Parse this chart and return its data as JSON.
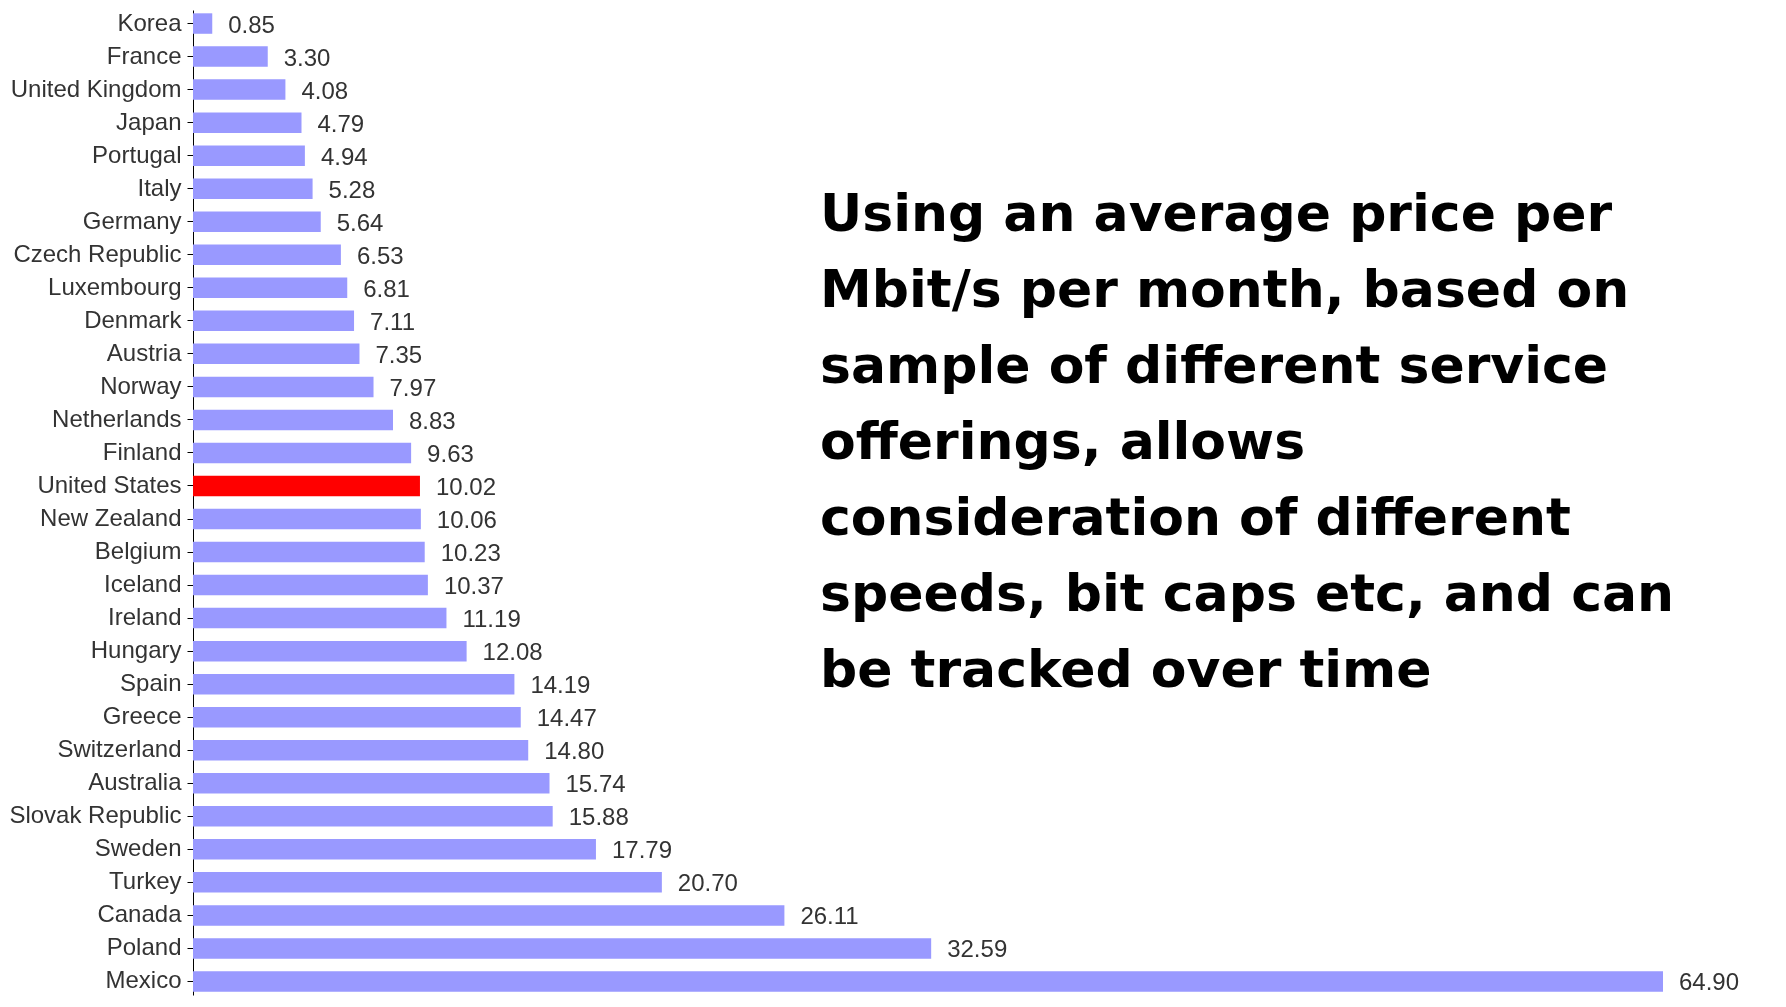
{
  "chart_data": {
    "type": "bar",
    "orientation": "horizontal",
    "data_labels": true,
    "categories": [
      "Korea",
      "France",
      "United Kingdom",
      "Japan",
      "Portugal",
      "Italy",
      "Germany",
      "Czech Republic",
      "Luxembourg",
      "Denmark",
      "Austria",
      "Norway",
      "Netherlands",
      "Finland",
      "United States",
      "New Zealand",
      "Belgium",
      "Iceland",
      "Ireland",
      "Hungary",
      "Spain",
      "Greece",
      "Switzerland",
      "Australia",
      "Slovak Republic",
      "Sweden",
      "Turkey",
      "Canada",
      "Poland",
      "Mexico"
    ],
    "values": [
      0.85,
      3.3,
      4.08,
      4.79,
      4.94,
      5.28,
      5.64,
      6.53,
      6.81,
      7.11,
      7.35,
      7.97,
      8.83,
      9.63,
      10.02,
      10.06,
      10.23,
      10.37,
      11.19,
      12.08,
      14.19,
      14.47,
      14.8,
      15.74,
      15.88,
      17.79,
      20.7,
      26.11,
      32.59,
      64.9
    ],
    "value_labels": [
      "0.85",
      "3.30",
      "4.08",
      "4.79",
      "4.94",
      "5.28",
      "5.64",
      "6.53",
      "6.81",
      "7.11",
      "7.35",
      "7.97",
      "8.83",
      "9.63",
      "10.02",
      "10.06",
      "10.23",
      "10.37",
      "11.19",
      "12.08",
      "14.19",
      "14.47",
      "14.80",
      "15.74",
      "15.88",
      "17.79",
      "20.70",
      "26.11",
      "32.59",
      "64.90"
    ],
    "colors": [
      "#9999ff",
      "#9999ff",
      "#9999ff",
      "#9999ff",
      "#9999ff",
      "#9999ff",
      "#9999ff",
      "#9999ff",
      "#9999ff",
      "#9999ff",
      "#9999ff",
      "#9999ff",
      "#9999ff",
      "#9999ff",
      "#ff0000",
      "#9999ff",
      "#9999ff",
      "#9999ff",
      "#9999ff",
      "#9999ff",
      "#9999ff",
      "#9999ff",
      "#9999ff",
      "#9999ff",
      "#9999ff",
      "#9999ff",
      "#9999ff",
      "#9999ff",
      "#9999ff",
      "#9999ff"
    ],
    "annotations": [
      "Using an average price per Mbit/s per month, based on sample of different service offerings, allows consideration of different speeds, bit caps etc, and can be tracked over time"
    ]
  }
}
